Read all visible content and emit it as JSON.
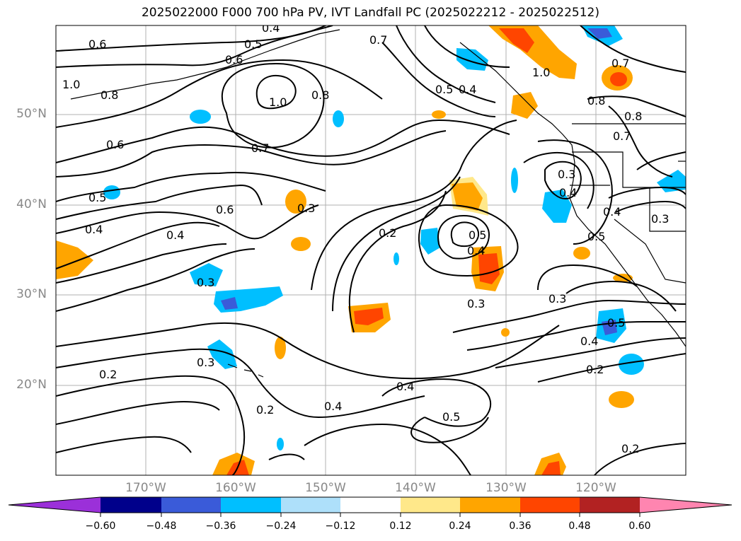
{
  "title": "2025022000 F000 700 hPa PV, IVT Landfall PC (2025022212 - 2025022512)",
  "map": {
    "region": "North Pacific",
    "gridlines": true,
    "lat_labels": [
      "50°N",
      "40°N",
      "30°N",
      "20°N"
    ],
    "lon_labels": [
      "170°W",
      "160°W",
      "150°W",
      "140°W",
      "130°W",
      "120°W"
    ],
    "contour_labels": [
      "0.6",
      "0.5",
      "0.4",
      "0.6",
      "0.7",
      "1.0",
      "0.8",
      "1.0",
      "0.8",
      "0.5",
      "0.4",
      "1.0",
      "0.7",
      "0.8",
      "0.8",
      "0.7",
      "0.6",
      "0.7",
      "0.5",
      "0.4",
      "0.6",
      "0.3",
      "0.4",
      "0.3",
      "0.2",
      "0.5",
      "0.4",
      "0.3",
      "0.3",
      "0.4",
      "0.5",
      "0.4",
      "0.3",
      "0.3",
      "0.3",
      "0.4",
      "0.5",
      "0.2",
      "0.2",
      "0.4",
      "0.4",
      "0.5",
      "0.2",
      "0.2"
    ]
  },
  "colorbar": {
    "colors": [
      "#9b30d9",
      "#00008b",
      "#3a5bd9",
      "#00bfff",
      "#aee0fa",
      "#ffffff",
      "#ffe88a",
      "#ffa500",
      "#ff4500",
      "#b22222",
      "#ff85b0"
    ],
    "ticks": [
      "−0.60",
      "−0.48",
      "−0.36",
      "−0.24",
      "−0.12",
      "0.12",
      "0.24",
      "0.36",
      "0.48",
      "0.60"
    ]
  }
}
